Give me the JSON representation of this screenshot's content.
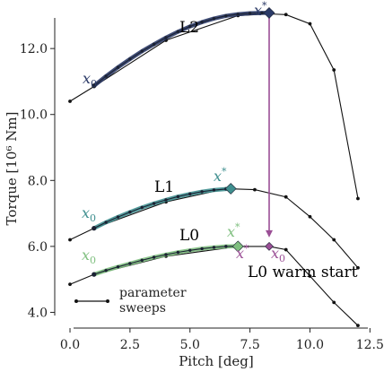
{
  "chart_data": {
    "type": "line",
    "xlabel": "Pitch [deg]",
    "ylabel": "Torque [10⁶ Nm]",
    "xlim": [
      -0.3,
      12.6
    ],
    "ylim": [
      3.55,
      13.2
    ],
    "xticks": [
      "0.0",
      "2.5",
      "5.0",
      "7.5",
      "10.0",
      "12.5"
    ],
    "xtick_values": [
      0,
      2.5,
      5,
      7.5,
      10,
      12.5
    ],
    "yticks": [
      "4.0",
      "6.0",
      "8.0",
      "10.0",
      "12.0"
    ],
    "ytick_values": [
      4,
      6,
      8,
      10,
      12
    ],
    "legend": {
      "position": "bottom-left",
      "label": "parameter\nsweeps"
    },
    "colors": {
      "sweep": "#111111",
      "L2": "#2b3a67",
      "L1": "#3f8f8f",
      "L0": "#7fbf7f",
      "warm_start": "#9b4f96"
    },
    "sweeps": [
      {
        "x": [
          0,
          1,
          4,
          7,
          8.3,
          9,
          10,
          11,
          12
        ],
        "y": [
          10.4,
          10.85,
          12.25,
          13.0,
          13.05,
          13.03,
          12.75,
          11.35,
          7.45
        ]
      },
      {
        "x": [
          0,
          1,
          4,
          6.5,
          7.7,
          9,
          10,
          11,
          12
        ],
        "y": [
          6.2,
          6.55,
          7.35,
          7.75,
          7.72,
          7.5,
          6.9,
          6.2,
          5.35
        ]
      },
      {
        "x": [
          0,
          1,
          4,
          7,
          8.3,
          9,
          10,
          11,
          12
        ],
        "y": [
          4.85,
          5.15,
          5.7,
          6.0,
          6.0,
          5.9,
          5.1,
          4.3,
          3.6
        ]
      }
    ],
    "paths": [
      {
        "name": "L2",
        "x": [
          1.0,
          1.5,
          2.0,
          2.5,
          3.0,
          3.5,
          4.0,
          4.5,
          5.0,
          5.5,
          6.0,
          6.5,
          7.0,
          7.5,
          8.0,
          8.3
        ],
        "y": [
          10.87,
          11.16,
          11.43,
          11.68,
          11.92,
          12.13,
          12.33,
          12.51,
          12.67,
          12.8,
          12.91,
          12.99,
          13.04,
          13.07,
          13.08,
          13.08
        ]
      },
      {
        "name": "L1",
        "x": [
          1.0,
          1.5,
          2.0,
          2.5,
          3.0,
          3.5,
          4.0,
          4.5,
          5.0,
          5.5,
          6.0,
          6.5,
          6.7
        ],
        "y": [
          6.55,
          6.73,
          6.89,
          7.04,
          7.18,
          7.3,
          7.41,
          7.51,
          7.59,
          7.66,
          7.71,
          7.74,
          7.75
        ]
      },
      {
        "name": "L0",
        "x": [
          1.0,
          1.5,
          2.0,
          2.5,
          3.0,
          3.5,
          4.0,
          4.5,
          5.0,
          5.5,
          6.0,
          6.5,
          7.0
        ],
        "y": [
          5.15,
          5.27,
          5.38,
          5.48,
          5.58,
          5.67,
          5.75,
          5.82,
          5.88,
          5.93,
          5.97,
          6.0,
          6.01
        ]
      }
    ],
    "optima": [
      {
        "name": "L2",
        "x": 8.3,
        "y": 13.08
      },
      {
        "name": "L1",
        "x": 6.7,
        "y": 7.75
      },
      {
        "name": "L0",
        "x": 7.0,
        "y": 6.0
      },
      {
        "name": "L0 warm start",
        "x": 8.3,
        "y": 6.0
      }
    ],
    "warm_start_arrow": {
      "x": 8.3,
      "y_from": 12.95,
      "y_to": 6.3
    },
    "annotations": {
      "L2": "L2",
      "L1": "L1",
      "L0": "L0",
      "x0": "x",
      "x0_sub": "0",
      "xstar": "x",
      "xstar_sup": "*",
      "warm_start": "L0 warm start"
    }
  }
}
